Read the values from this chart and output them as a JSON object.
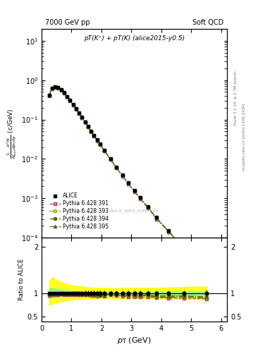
{
  "title_left": "7000 GeV pp",
  "title_right": "Soft QCD",
  "annotation": "pT(K⁺) + pT(K) (alice2015-y0.5)",
  "watermark": "ALICE_2015_I1357424",
  "right_label_top": "Rivet 3.1.10, ≥ 2.7M events",
  "right_label_bottom": "mcplots.cern.ch [arXiv:1306.3436]",
  "ylabel_main": "1/N_inel d²N/dp_Tdy (c/GeV)",
  "ylabel_ratio": "Ratio to ALICE",
  "xlabel": "p_T (GeV)",
  "xlim": [
    0,
    6.2
  ],
  "ylim_main": [
    0.0001,
    20
  ],
  "ylim_ratio": [
    0.4,
    2.2
  ],
  "alice_pt": [
    0.25,
    0.35,
    0.45,
    0.55,
    0.65,
    0.75,
    0.85,
    0.95,
    1.05,
    1.15,
    1.25,
    1.35,
    1.45,
    1.55,
    1.65,
    1.75,
    1.85,
    1.95,
    2.1,
    2.3,
    2.5,
    2.7,
    2.9,
    3.1,
    3.3,
    3.55,
    3.85,
    4.25,
    4.75,
    5.5
  ],
  "alice_y": [
    0.42,
    0.62,
    0.68,
    0.65,
    0.57,
    0.48,
    0.39,
    0.31,
    0.24,
    0.19,
    0.148,
    0.114,
    0.088,
    0.067,
    0.051,
    0.04,
    0.031,
    0.024,
    0.017,
    0.01,
    0.0062,
    0.0039,
    0.0025,
    0.0016,
    0.00105,
    0.00062,
    0.00033,
    0.000155,
    5.8e-05,
    1.05e-05
  ],
  "alice_ey": [
    0.02,
    0.02,
    0.02,
    0.02,
    0.02,
    0.015,
    0.015,
    0.012,
    0.01,
    0.009,
    0.007,
    0.006,
    0.005,
    0.004,
    0.003,
    0.0025,
    0.002,
    0.0016,
    0.001,
    0.0006,
    0.0004,
    0.00025,
    0.00016,
    0.0001,
    7e-05,
    4e-05,
    2e-05,
    1e-05,
    4e-06,
    8e-07
  ],
  "py391_pt": [
    0.25,
    0.35,
    0.45,
    0.55,
    0.65,
    0.75,
    0.85,
    0.95,
    1.05,
    1.15,
    1.25,
    1.35,
    1.45,
    1.55,
    1.65,
    1.75,
    1.85,
    1.95,
    2.1,
    2.3,
    2.5,
    2.7,
    2.9,
    3.1,
    3.3,
    3.55,
    3.85,
    4.25,
    4.75,
    5.5
  ],
  "py391_y": [
    0.4,
    0.6,
    0.66,
    0.63,
    0.56,
    0.47,
    0.38,
    0.3,
    0.235,
    0.185,
    0.143,
    0.11,
    0.085,
    0.065,
    0.049,
    0.038,
    0.029,
    0.023,
    0.016,
    0.0097,
    0.0059,
    0.0037,
    0.0023,
    0.00148,
    0.00097,
    0.00057,
    0.0003,
    0.00014,
    5.2e-05,
    9.3e-06
  ],
  "py391_color": "#aa3377",
  "py391_label": "Pythia 6.428 391",
  "py393_pt": [
    0.25,
    0.35,
    0.45,
    0.55,
    0.65,
    0.75,
    0.85,
    0.95,
    1.05,
    1.15,
    1.25,
    1.35,
    1.45,
    1.55,
    1.65,
    1.75,
    1.85,
    1.95,
    2.1,
    2.3,
    2.5,
    2.7,
    2.9,
    3.1,
    3.3,
    3.55,
    3.85,
    4.25,
    4.75,
    5.5
  ],
  "py393_y": [
    0.41,
    0.61,
    0.67,
    0.645,
    0.57,
    0.475,
    0.385,
    0.305,
    0.238,
    0.188,
    0.145,
    0.112,
    0.086,
    0.066,
    0.05,
    0.039,
    0.03,
    0.0235,
    0.0163,
    0.0099,
    0.006,
    0.0038,
    0.00238,
    0.00152,
    0.001,
    0.00059,
    0.000305,
    0.000143,
    5.4e-05,
    9.5e-06
  ],
  "py393_color": "#999900",
  "py393_label": "Pythia 6.428 393",
  "py394_pt": [
    0.25,
    0.35,
    0.45,
    0.55,
    0.65,
    0.75,
    0.85,
    0.95,
    1.05,
    1.15,
    1.25,
    1.35,
    1.45,
    1.55,
    1.65,
    1.75,
    1.85,
    1.95,
    2.1,
    2.3,
    2.5,
    2.7,
    2.9,
    3.1,
    3.3,
    3.55,
    3.85,
    4.25,
    4.75,
    5.5
  ],
  "py394_y": [
    0.41,
    0.615,
    0.67,
    0.645,
    0.57,
    0.475,
    0.385,
    0.305,
    0.238,
    0.188,
    0.145,
    0.112,
    0.086,
    0.066,
    0.05,
    0.039,
    0.03,
    0.0235,
    0.0163,
    0.0099,
    0.006,
    0.0038,
    0.00238,
    0.00152,
    0.001,
    0.00059,
    0.000305,
    0.000143,
    5.4e-05,
    9.5e-06
  ],
  "py394_color": "#556600",
  "py394_label": "Pythia 6.428 394",
  "py395_pt": [
    0.25,
    0.35,
    0.45,
    0.55,
    0.65,
    0.75,
    0.85,
    0.95,
    1.05,
    1.15,
    1.25,
    1.35,
    1.45,
    1.55,
    1.65,
    1.75,
    1.85,
    1.95,
    2.1,
    2.3,
    2.5,
    2.7,
    2.9,
    3.1,
    3.3,
    3.55,
    3.85,
    4.25,
    4.75,
    5.5
  ],
  "py395_y": [
    0.415,
    0.625,
    0.68,
    0.655,
    0.575,
    0.48,
    0.39,
    0.31,
    0.242,
    0.19,
    0.147,
    0.113,
    0.087,
    0.067,
    0.051,
    0.0395,
    0.0305,
    0.024,
    0.0165,
    0.01,
    0.0062,
    0.0038,
    0.0024,
    0.00155,
    0.00102,
    0.0006,
    0.000312,
    0.000147,
    5.5e-05,
    9.7e-06
  ],
  "py395_color": "#556b2f",
  "py395_label": "Pythia 6.428 395",
  "band_yellow_upper": [
    1.25,
    1.35,
    1.3,
    1.28,
    1.25,
    1.22,
    1.2,
    1.18,
    1.17,
    1.16,
    1.155,
    1.15,
    1.14,
    1.13,
    1.13,
    1.12,
    1.12,
    1.12,
    1.12,
    1.115,
    1.115,
    1.12,
    1.12,
    1.12,
    1.12,
    1.12,
    1.12,
    1.13,
    1.14,
    1.15
  ],
  "band_yellow_lower": [
    0.75,
    0.78,
    0.8,
    0.82,
    0.83,
    0.84,
    0.85,
    0.86,
    0.87,
    0.875,
    0.88,
    0.88,
    0.885,
    0.89,
    0.89,
    0.89,
    0.9,
    0.9,
    0.9,
    0.9,
    0.9,
    0.895,
    0.895,
    0.89,
    0.89,
    0.89,
    0.89,
    0.885,
    0.88,
    0.87
  ],
  "band_green_upper": [
    1.1,
    1.12,
    1.1,
    1.09,
    1.08,
    1.07,
    1.065,
    1.06,
    1.055,
    1.05,
    1.048,
    1.046,
    1.044,
    1.042,
    1.04,
    1.038,
    1.037,
    1.036,
    1.035,
    1.033,
    1.032,
    1.032,
    1.032,
    1.032,
    1.032,
    1.032,
    1.033,
    1.035,
    1.038,
    1.04
  ],
  "band_green_lower": [
    0.9,
    0.91,
    0.92,
    0.93,
    0.935,
    0.94,
    0.945,
    0.948,
    0.95,
    0.952,
    0.954,
    0.956,
    0.957,
    0.958,
    0.959,
    0.96,
    0.961,
    0.962,
    0.963,
    0.964,
    0.965,
    0.964,
    0.963,
    0.962,
    0.961,
    0.96,
    0.959,
    0.957,
    0.954,
    0.95
  ]
}
